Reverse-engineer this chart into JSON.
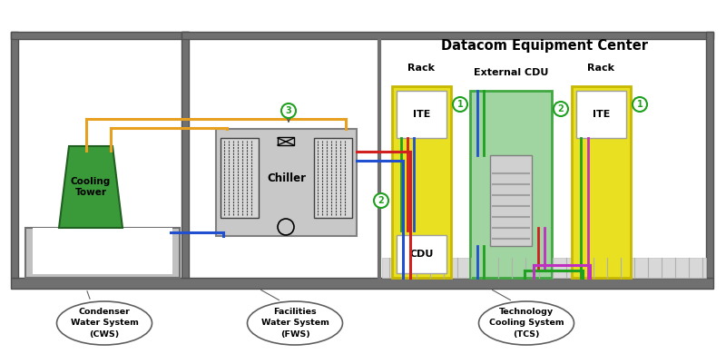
{
  "bg_color": "#ffffff",
  "title": "Datacom Equipment Center",
  "cooling_tower_color": "#3a9a3a",
  "cooling_tower_text": "Cooling\nTower",
  "chiller_color": "#c8c8c8",
  "chiller_text": "Chiller",
  "rack_color": "#e8e020",
  "rack_border": "#c8b800",
  "ext_cdu_color": "#a0d4a0",
  "ext_cdu_border": "#40a840",
  "ite_text": "ITE",
  "cdu_text": "CDU",
  "ext_cdu_label": "External CDU",
  "rack_label": "Rack",
  "label1_text": "Condenser\nWater System\n(CWS)",
  "label2_text": "Facilities\nWater System\n(FWS)",
  "label3_text": "Technology\nCooling System\n(TCS)",
  "color_orange": "#e8a020",
  "color_blue": "#2050d0",
  "color_red": "#d02020",
  "color_green": "#20a020",
  "color_purple": "#c030c0",
  "color_gray_line": "#a0a0a0",
  "wall_color": "#707070",
  "wall_light": "#a0a0a0"
}
